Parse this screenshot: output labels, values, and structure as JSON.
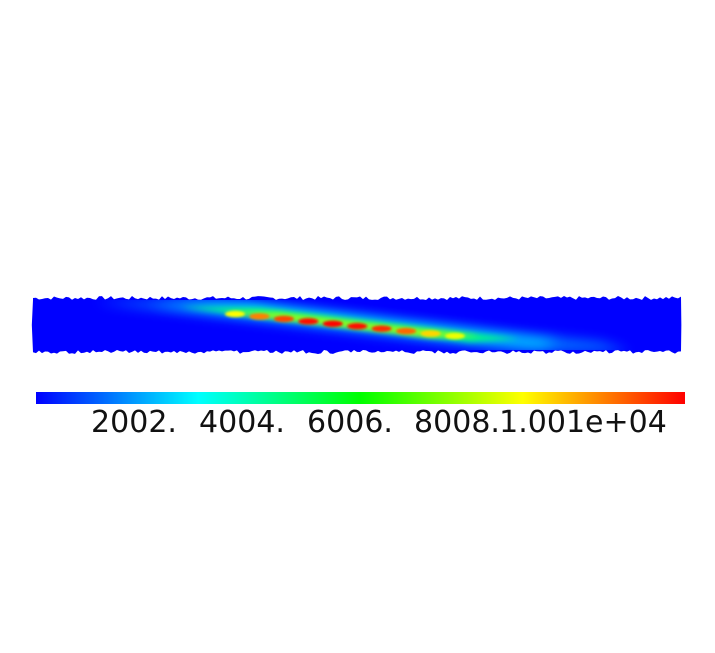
{
  "chart_data": {
    "type": "heatmap",
    "title": "",
    "xlabel": "",
    "ylabel": "",
    "colormap": "rainbow (blue-cyan-green-yellow-red)",
    "colormap_stops": [
      "#0000ff",
      "#00ffff",
      "#00ff00",
      "#ffff00",
      "#ff0000"
    ],
    "background_value_color": "#0000ff",
    "value_range": [
      0,
      12000
    ],
    "colorbar": {
      "orientation": "horizontal",
      "placement": "below",
      "tick_labels": [
        "2002.",
        "4004.",
        "6006.",
        "8008.",
        "1.001e+04"
      ],
      "tick_values": [
        2002,
        4004,
        6006,
        8008,
        10010
      ]
    },
    "description_of_field": "thin diagonal band of high values running from upper-left to lower-right inside a blue horizontal strip; peak values ~10000-12000 appear as a chain of red spots near the centre",
    "peak_spots": [
      {
        "value": 9000
      },
      {
        "value": 10500
      },
      {
        "value": 11200
      },
      {
        "value": 11800
      },
      {
        "value": 12000
      },
      {
        "value": 11800
      },
      {
        "value": 11500
      },
      {
        "value": 10800
      },
      {
        "value": 9500
      },
      {
        "value": 8800
      }
    ]
  },
  "colors": {
    "strip_background": "#0000ff",
    "page_background": "#ffffff",
    "text": "#111111"
  }
}
